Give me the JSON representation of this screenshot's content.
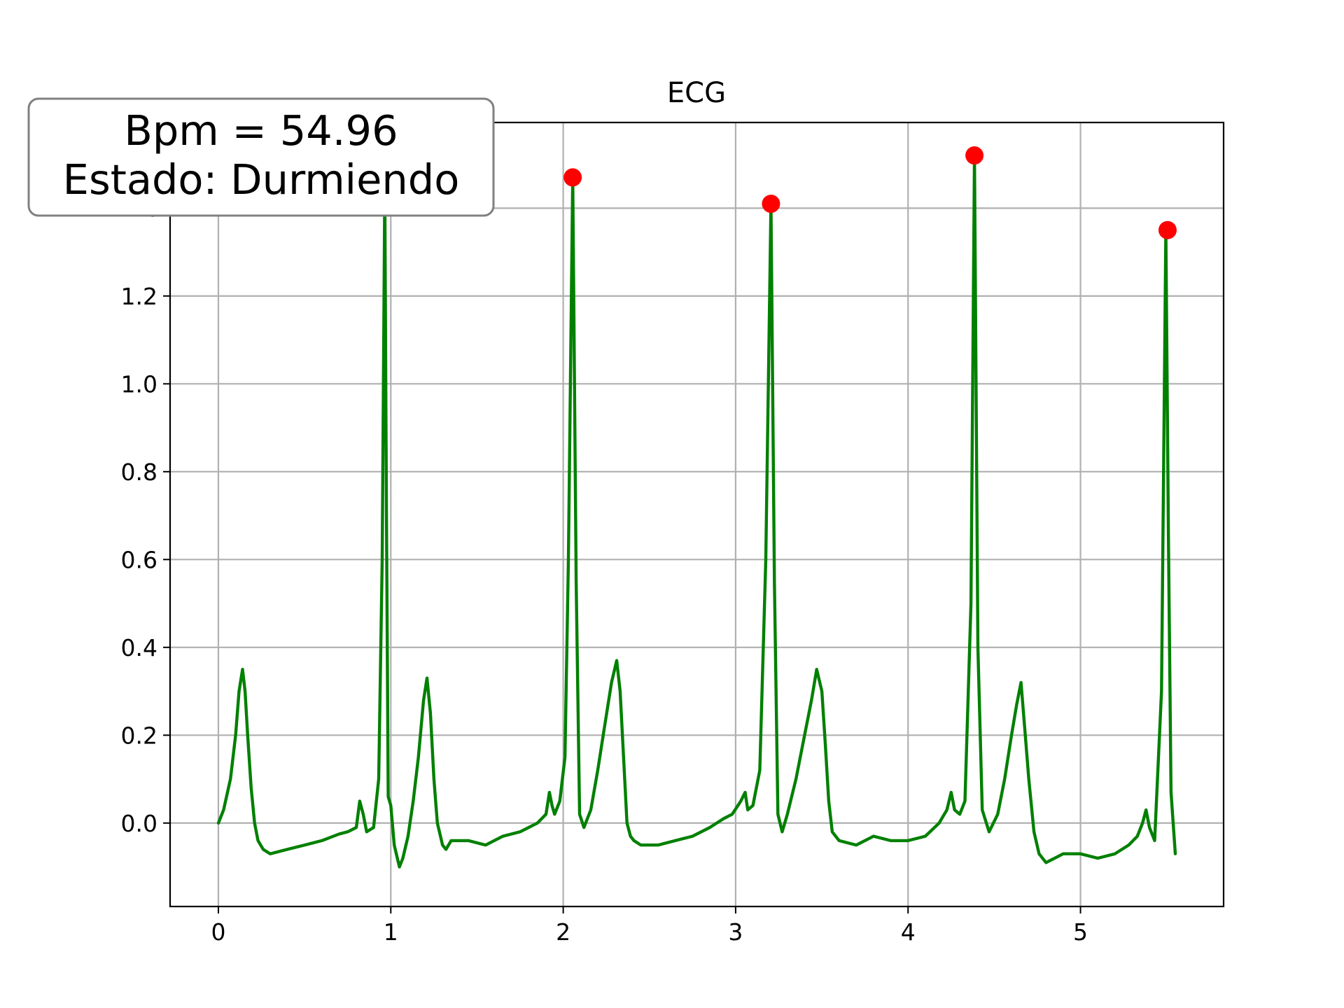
{
  "chart_data": {
    "type": "line",
    "title": "ECG",
    "xlabel": "",
    "ylabel": "",
    "xlim": [
      -0.28,
      5.83
    ],
    "ylim": [
      -0.19,
      1.595
    ],
    "grid": true,
    "x_ticks": [
      {
        "value": 0,
        "label": "0"
      },
      {
        "value": 1,
        "label": "1"
      },
      {
        "value": 2,
        "label": "2"
      },
      {
        "value": 3,
        "label": "3"
      },
      {
        "value": 4,
        "label": "4"
      },
      {
        "value": 5,
        "label": "5"
      }
    ],
    "y_ticks": [
      {
        "value": 0.0,
        "label": "0.0"
      },
      {
        "value": 0.2,
        "label": "0.2"
      },
      {
        "value": 0.4,
        "label": "0.4"
      },
      {
        "value": 0.6,
        "label": "0.6"
      },
      {
        "value": 0.8,
        "label": "0.8"
      },
      {
        "value": 1.0,
        "label": "1.0"
      },
      {
        "value": 1.2,
        "label": "1.2"
      },
      {
        "value": 1.4,
        "label": "1.4"
      }
    ],
    "series": [
      {
        "color": "#008000",
        "x": [
          0.0,
          0.03,
          0.07,
          0.1,
          0.12,
          0.14,
          0.155,
          0.17,
          0.19,
          0.21,
          0.23,
          0.26,
          0.3,
          0.4,
          0.5,
          0.6,
          0.7,
          0.75,
          0.8,
          0.82,
          0.84,
          0.86,
          0.9,
          0.93,
          0.95,
          0.965,
          0.975,
          0.985,
          1.0,
          1.02,
          1.05,
          1.07,
          1.1,
          1.13,
          1.16,
          1.19,
          1.21,
          1.23,
          1.25,
          1.27,
          1.3,
          1.32,
          1.35,
          1.45,
          1.55,
          1.65,
          1.75,
          1.85,
          1.9,
          1.92,
          1.935,
          1.95,
          1.98,
          2.01,
          2.03,
          2.055,
          2.075,
          2.095,
          2.12,
          2.16,
          2.2,
          2.24,
          2.28,
          2.31,
          2.33,
          2.35,
          2.37,
          2.39,
          2.41,
          2.45,
          2.55,
          2.65,
          2.75,
          2.85,
          2.93,
          2.98,
          3.03,
          3.055,
          3.07,
          3.1,
          3.14,
          3.175,
          3.205,
          3.225,
          3.245,
          3.27,
          3.3,
          3.35,
          3.4,
          3.44,
          3.47,
          3.5,
          3.52,
          3.54,
          3.56,
          3.6,
          3.7,
          3.8,
          3.9,
          4.0,
          4.1,
          4.18,
          4.225,
          4.25,
          4.27,
          4.3,
          4.33,
          4.365,
          4.385,
          4.405,
          4.43,
          4.47,
          4.52,
          4.56,
          4.6,
          4.63,
          4.655,
          4.68,
          4.7,
          4.73,
          4.76,
          4.8,
          4.9,
          5.0,
          5.1,
          5.2,
          5.28,
          5.33,
          5.36,
          5.38,
          5.4,
          5.43,
          5.47,
          5.495,
          5.51,
          5.525,
          5.55
        ],
        "y": [
          0.0,
          0.03,
          0.1,
          0.2,
          0.3,
          0.35,
          0.3,
          0.2,
          0.08,
          0.0,
          -0.04,
          -0.06,
          -0.07,
          -0.06,
          -0.05,
          -0.04,
          -0.025,
          -0.02,
          -0.01,
          0.05,
          0.02,
          -0.02,
          -0.01,
          0.1,
          0.6,
          1.45,
          0.7,
          0.06,
          0.04,
          -0.05,
          -0.1,
          -0.08,
          -0.03,
          0.05,
          0.15,
          0.28,
          0.33,
          0.25,
          0.1,
          0.0,
          -0.05,
          -0.06,
          -0.04,
          -0.04,
          -0.05,
          -0.03,
          -0.02,
          0.0,
          0.02,
          0.07,
          0.04,
          0.02,
          0.05,
          0.15,
          0.6,
          1.47,
          0.55,
          0.02,
          -0.01,
          0.03,
          0.12,
          0.22,
          0.32,
          0.37,
          0.3,
          0.15,
          0.0,
          -0.03,
          -0.04,
          -0.05,
          -0.05,
          -0.04,
          -0.03,
          -0.01,
          0.01,
          0.02,
          0.05,
          0.07,
          0.03,
          0.04,
          0.12,
          0.6,
          1.41,
          0.55,
          0.02,
          -0.02,
          0.02,
          0.1,
          0.2,
          0.28,
          0.35,
          0.3,
          0.18,
          0.05,
          -0.02,
          -0.04,
          -0.05,
          -0.03,
          -0.04,
          -0.04,
          -0.03,
          0.0,
          0.03,
          0.07,
          0.03,
          0.02,
          0.05,
          0.5,
          1.52,
          0.4,
          0.03,
          -0.02,
          0.02,
          0.1,
          0.2,
          0.27,
          0.32,
          0.2,
          0.1,
          -0.02,
          -0.07,
          -0.09,
          -0.07,
          -0.07,
          -0.08,
          -0.07,
          -0.05,
          -0.03,
          0.0,
          0.03,
          -0.01,
          -0.04,
          0.3,
          1.35,
          0.65,
          0.07,
          -0.07
        ]
      },
      {
        "color": "#ff0000",
        "marker": "o",
        "x": [
          0.975,
          2.055,
          3.205,
          4.385,
          5.505
        ],
        "y": [
          1.45,
          1.47,
          1.41,
          1.52,
          1.35
        ]
      }
    ],
    "annotation": {
      "text_line1": "Bpm = 54.96",
      "text_line2": "Estado: Durmiendo",
      "position": "top-left"
    }
  }
}
